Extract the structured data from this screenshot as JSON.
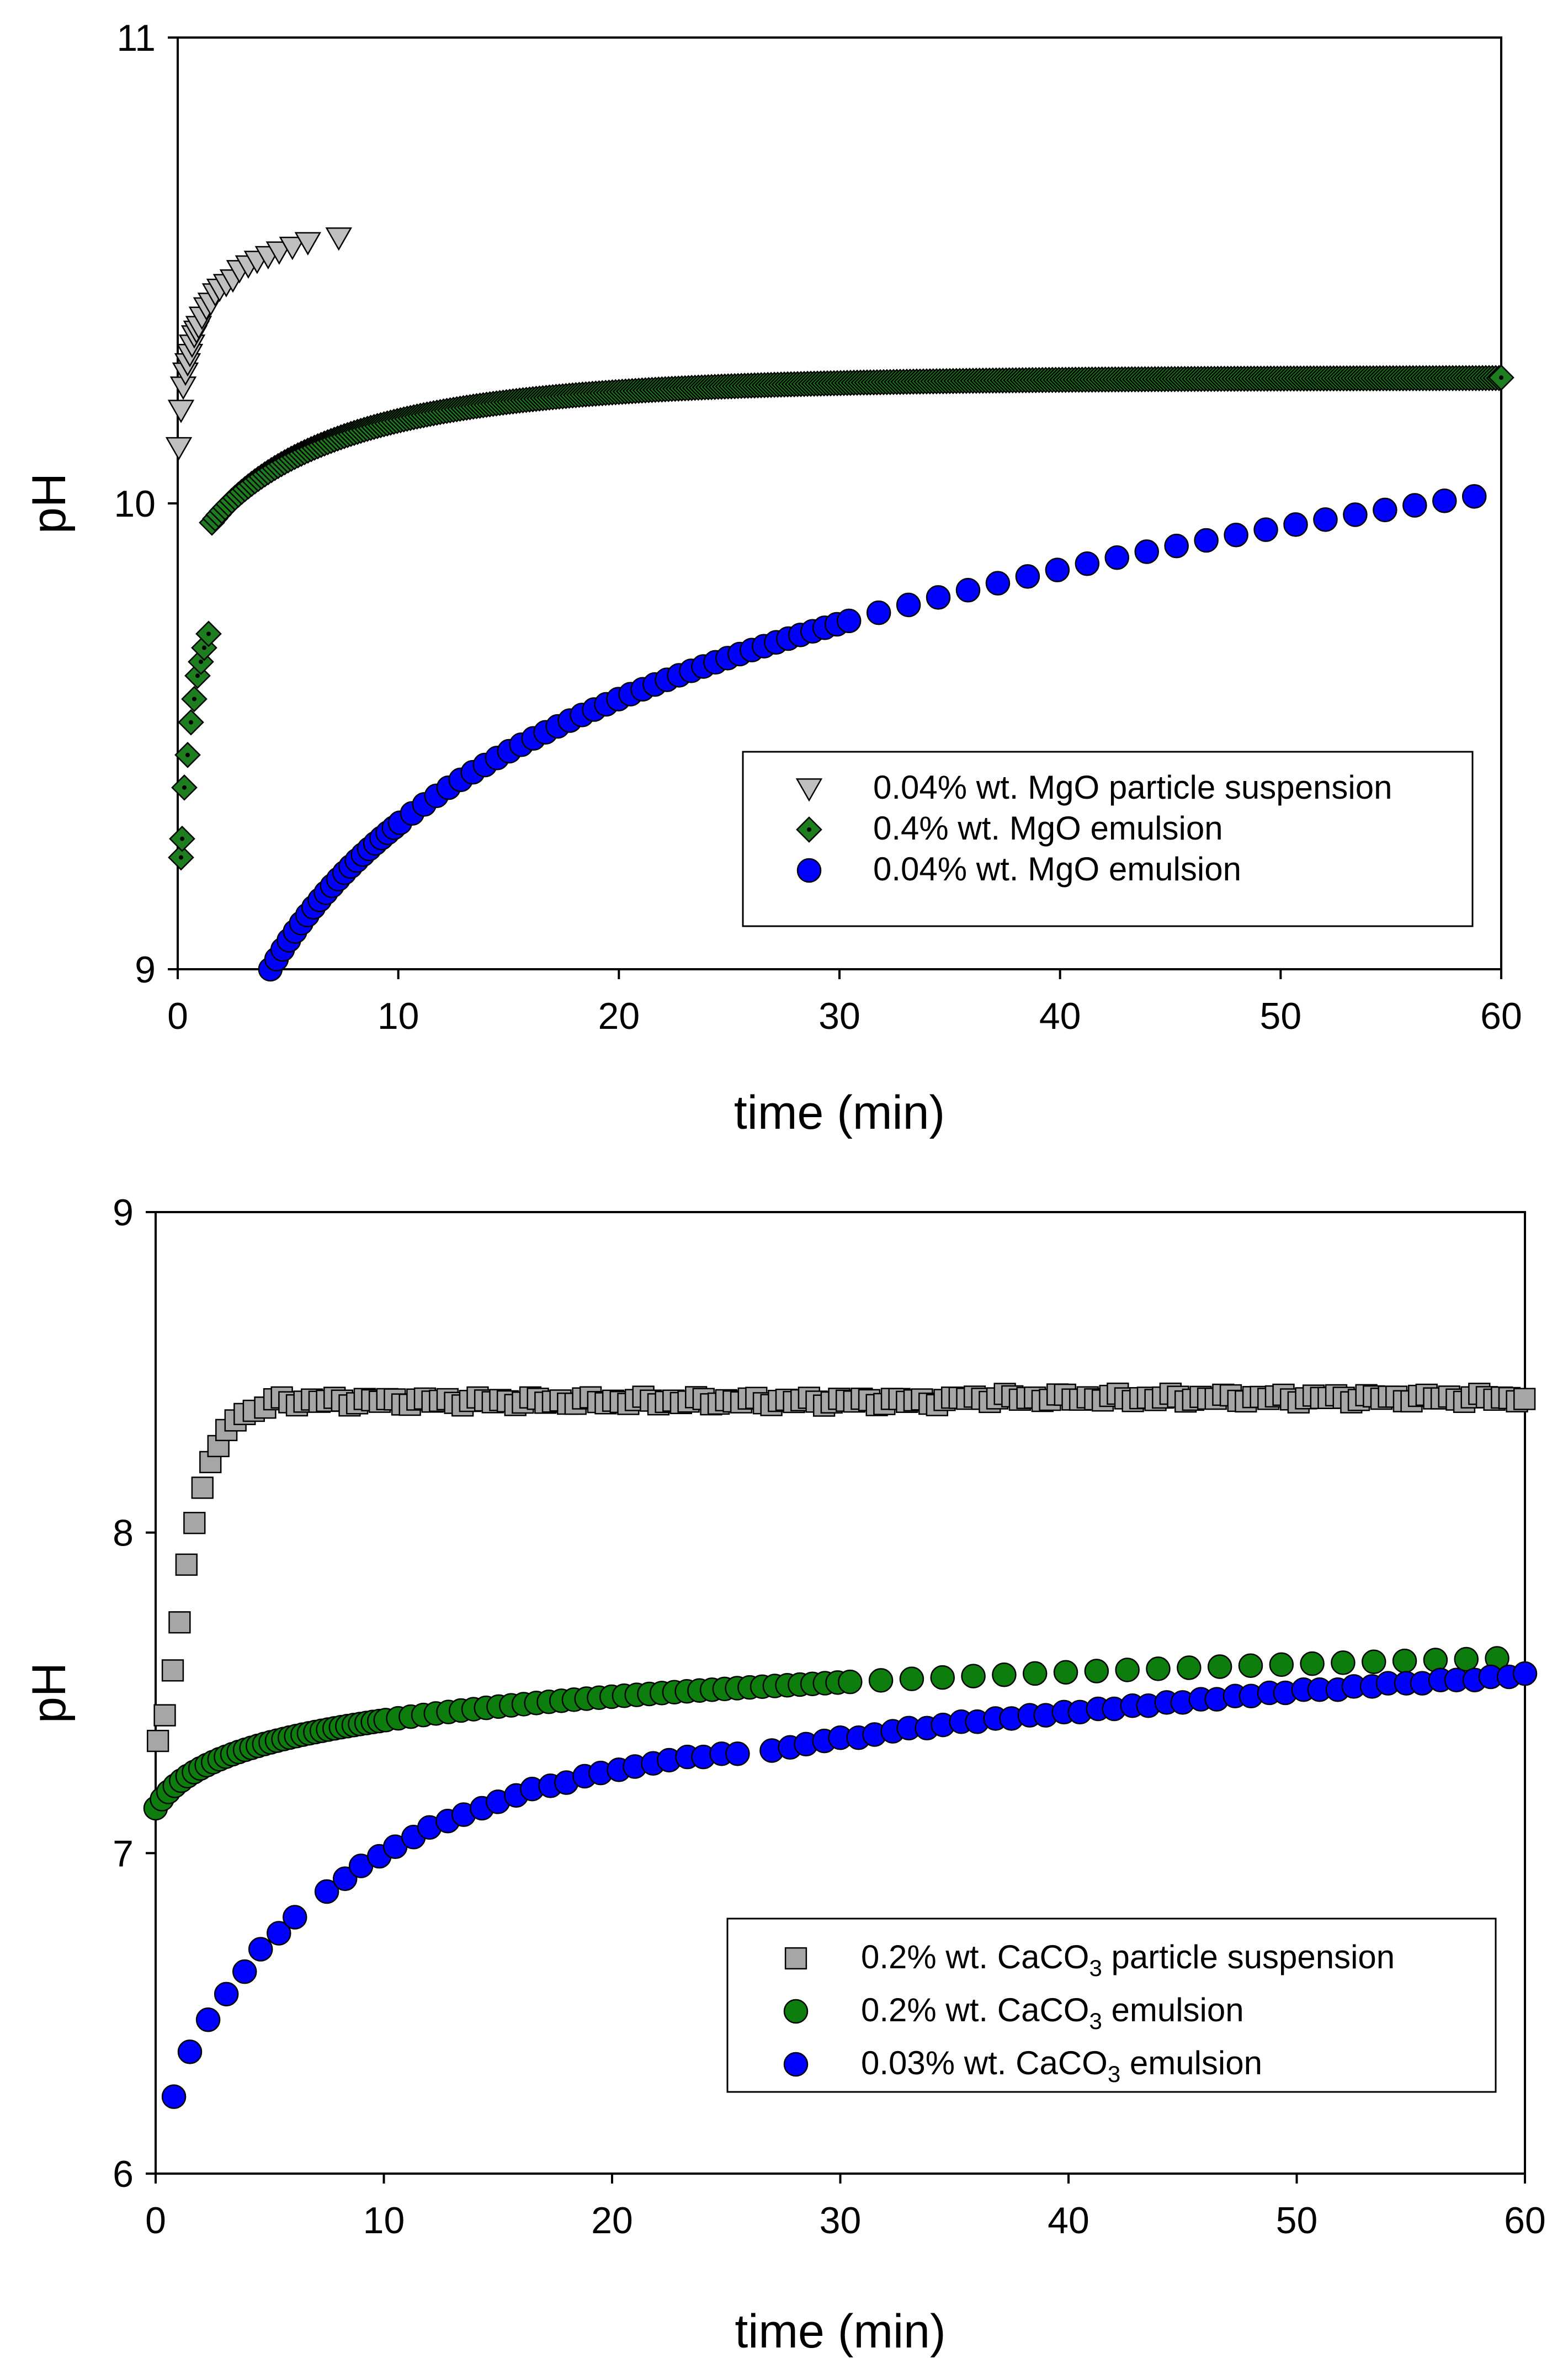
{
  "chart_data": [
    {
      "type": "scatter",
      "title": "",
      "xlabel": "time (min)",
      "ylabel": "pH",
      "xlim": [
        0,
        60
      ],
      "ylim": [
        9,
        11
      ],
      "xticks": [
        "0",
        "10",
        "20",
        "30",
        "40",
        "50",
        "60"
      ],
      "yticks": [
        "9",
        "10",
        "11"
      ],
      "grid": false,
      "legend_position": "lower-right",
      "series": [
        {
          "name": "0.04% wt. MgO particle suspension",
          "label_main": "0.04% wt. MgO particle suspension",
          "marker": "triangle-down",
          "color": "#bfbfbf",
          "x": [
            0.05,
            0.15,
            0.25,
            0.35,
            0.45,
            0.55,
            0.65,
            0.75,
            0.85,
            0.95,
            1.1,
            1.3,
            1.5,
            1.7,
            1.9,
            2.2,
            2.5,
            2.8,
            3.2,
            3.6,
            4.1,
            4.6,
            5.2,
            5.9,
            7.3
          ],
          "y": [
            10.12,
            10.2,
            10.25,
            10.28,
            10.3,
            10.32,
            10.34,
            10.36,
            10.37,
            10.38,
            10.4,
            10.42,
            10.43,
            10.45,
            10.46,
            10.47,
            10.48,
            10.5,
            10.51,
            10.52,
            10.53,
            10.54,
            10.55,
            10.56,
            10.57
          ]
        },
        {
          "name": "0.4% wt. MgO emulsion",
          "label_main": "0.4% wt. MgO emulsion",
          "marker": "diamond",
          "color": "#1e7d1e",
          "model": "logistic-approach",
          "x_start": 0.15,
          "x_end": 60,
          "params": {
            "y_start": 9.24,
            "y_end": 10.27,
            "tau": 9.5
          },
          "x": [
            0.15,
            0.2,
            0.3,
            0.45,
            0.6,
            0.75,
            0.9,
            1.05,
            1.2,
            1.4
          ],
          "y": [
            9.24,
            9.28,
            9.39,
            9.46,
            9.53,
            9.58,
            9.63,
            9.66,
            9.69,
            9.72
          ]
        },
        {
          "name": "0.04% wt. MgO emulsion",
          "label_main": "0.04% wt. MgO emulsion",
          "marker": "circle",
          "color": "#0000ff",
          "model": "log-growth",
          "x_start": 4.2,
          "x_end": 59.5,
          "params": {
            "y0": 9.0,
            "y1": 10.02
          },
          "x": [
            4.2,
            59.5
          ],
          "y": [
            9.0,
            10.02
          ]
        }
      ]
    },
    {
      "type": "scatter",
      "title": "",
      "xlabel": "time (min)",
      "ylabel": "pH",
      "xlim": [
        0,
        60
      ],
      "ylim": [
        6,
        9
      ],
      "xticks": [
        "0",
        "10",
        "20",
        "30",
        "40",
        "50",
        "60"
      ],
      "yticks": [
        "6",
        "7",
        "8",
        "9"
      ],
      "grid": false,
      "legend_position": "lower-right",
      "series": [
        {
          "name": "0.2% wt. CaCO3 particle suspension",
          "label_main": "0.2% wt. CaCO",
          "label_sub": "3",
          "label_tail": " particle suspension",
          "marker": "square",
          "color": "#a6a6a6",
          "x": [
            0.1,
            0.4,
            0.75,
            1.05,
            1.35,
            1.7,
            2.05,
            2.4,
            2.75,
            3.1,
            3.5,
            3.9,
            4.3,
            4.8
          ],
          "y": [
            7.35,
            7.43,
            7.57,
            7.72,
            7.9,
            8.03,
            8.14,
            8.22,
            8.27,
            8.32,
            8.35,
            8.37,
            8.38,
            8.39
          ],
          "plateau": {
            "x_start": 5.2,
            "x_end": 60,
            "step": 0.33,
            "y": 8.41
          }
        },
        {
          "name": "0.2% wt. CaCO3 emulsion",
          "label_main": "0.2% wt. CaCO",
          "label_sub": "3",
          "label_tail": " emulsion",
          "marker": "circle",
          "color": "#0d7d0d",
          "model": "log-growth",
          "x_start": 0.0,
          "x_end": 60,
          "params": {
            "y0": 7.14,
            "y1": 7.61
          },
          "x": [
            0.0,
            60
          ],
          "y": [
            7.14,
            7.61
          ]
        },
        {
          "name": "0.03% wt. CaCO3 emulsion",
          "label_main": "0.03% wt. CaCO",
          "label_sub": "3",
          "label_tail": " emulsion",
          "marker": "circle",
          "color": "#0000ff",
          "x": [
            0.8,
            1.5,
            2.3,
            3.1,
            3.9,
            4.6,
            5.4,
            6.1,
            7.5,
            8.3,
            9.0,
            9.8,
            10.5,
            11.3,
            12.0,
            12.8,
            13.5,
            14.3,
            15.0,
            15.8,
            16.5,
            17.3,
            18.0,
            18.8,
            19.5,
            20.3,
            21.0,
            21.8,
            22.5,
            23.3,
            24.0,
            24.8,
            25.5,
            27.0,
            27.8,
            28.5,
            29.3,
            30.0,
            30.8,
            31.5,
            32.3,
            33.0,
            33.8,
            34.5,
            35.3,
            36.0,
            36.8,
            37.5,
            38.3,
            39.0,
            39.8,
            40.5,
            41.3,
            42.0,
            42.8,
            43.5,
            44.3,
            45.0,
            45.8,
            46.5,
            47.3,
            48.0,
            48.8,
            49.5,
            50.3,
            51.0,
            51.8,
            52.5,
            53.3,
            54.0,
            54.8,
            55.5,
            56.3,
            57.0,
            57.8,
            58.5,
            59.3,
            60.0
          ],
          "y": [
            6.24,
            6.38,
            6.48,
            6.56,
            6.63,
            6.7,
            6.75,
            6.8,
            6.88,
            6.92,
            6.96,
            6.99,
            7.02,
            7.05,
            7.08,
            7.1,
            7.12,
            7.14,
            7.16,
            7.18,
            7.2,
            7.21,
            7.22,
            7.24,
            7.25,
            7.26,
            7.27,
            7.28,
            7.29,
            7.3,
            7.3,
            7.31,
            7.31,
            7.32,
            7.33,
            7.34,
            7.35,
            7.36,
            7.36,
            7.37,
            7.38,
            7.39,
            7.39,
            7.4,
            7.41,
            7.41,
            7.42,
            7.42,
            7.43,
            7.43,
            7.44,
            7.44,
            7.45,
            7.45,
            7.46,
            7.46,
            7.47,
            7.47,
            7.48,
            7.48,
            7.49,
            7.49,
            7.5,
            7.5,
            7.51,
            7.51,
            7.51,
            7.52,
            7.52,
            7.53,
            7.53,
            7.53,
            7.54,
            7.54,
            7.54,
            7.55,
            7.55,
            7.56
          ]
        }
      ]
    }
  ]
}
